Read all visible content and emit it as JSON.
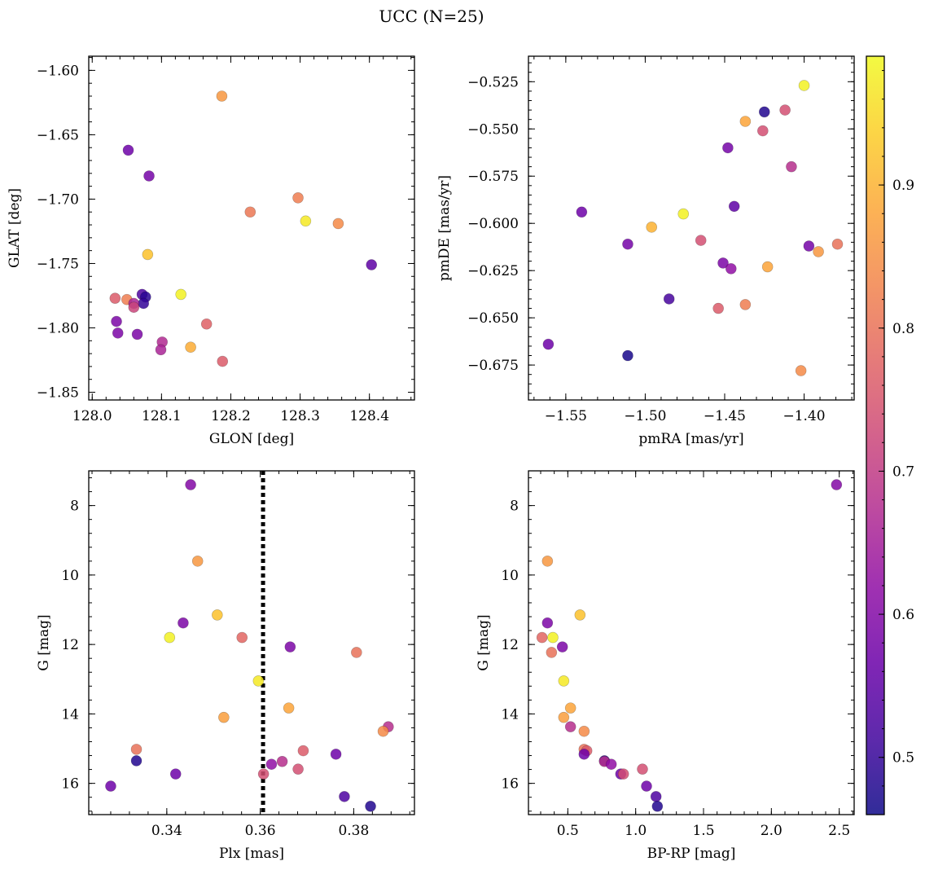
{
  "figure": {
    "title": "UCC (N=25)"
  },
  "colorbar": {
    "cmap": "plasma",
    "range": [
      0.46,
      0.99
    ],
    "ticks": [
      0.5,
      0.6,
      0.7,
      0.8,
      0.9
    ],
    "tick_labels": [
      "0.5",
      "0.6",
      "0.7",
      "0.8",
      "0.9"
    ]
  },
  "chart_data": [
    {
      "id": "glon-glat",
      "type": "scatter",
      "title": "",
      "xlabel": "GLON [deg]",
      "ylabel": "GLAT [deg]",
      "xlim": [
        127.995,
        128.465
      ],
      "ylim": [
        -1.856,
        -1.589
      ],
      "y_inverted": false,
      "xticks": [
        128.0,
        128.1,
        128.2,
        128.3,
        128.4
      ],
      "xtick_labels": [
        "128.0",
        "128.1",
        "128.2",
        "128.3",
        "128.4"
      ],
      "yticks": [
        -1.6,
        -1.65,
        -1.7,
        -1.75,
        -1.8,
        -1.85
      ],
      "ytick_labels": [
        "−1.60",
        "−1.65",
        "−1.70",
        "−1.75",
        "−1.80",
        "−1.85"
      ],
      "points": [
        {
          "x": 128.187,
          "y": -1.62,
          "c": 0.86
        },
        {
          "x": 128.052,
          "y": -1.662,
          "c": 0.57
        },
        {
          "x": 128.082,
          "y": -1.682,
          "c": 0.58
        },
        {
          "x": 128.297,
          "y": -1.699,
          "c": 0.82
        },
        {
          "x": 128.228,
          "y": -1.71,
          "c": 0.81
        },
        {
          "x": 128.308,
          "y": -1.717,
          "c": 0.97
        },
        {
          "x": 128.355,
          "y": -1.719,
          "c": 0.84
        },
        {
          "x": 128.403,
          "y": -1.751,
          "c": 0.55
        },
        {
          "x": 128.08,
          "y": -1.743,
          "c": 0.92
        },
        {
          "x": 128.128,
          "y": -1.774,
          "c": 0.98
        },
        {
          "x": 128.072,
          "y": -1.774,
          "c": 0.53
        },
        {
          "x": 128.077,
          "y": -1.776,
          "c": 0.49
        },
        {
          "x": 128.074,
          "y": -1.781,
          "c": 0.5
        },
        {
          "x": 128.033,
          "y": -1.777,
          "c": 0.76
        },
        {
          "x": 128.05,
          "y": -1.778,
          "c": 0.82
        },
        {
          "x": 128.06,
          "y": -1.781,
          "c": 0.66
        },
        {
          "x": 128.06,
          "y": -1.784,
          "c": 0.72
        },
        {
          "x": 128.035,
          "y": -1.795,
          "c": 0.59
        },
        {
          "x": 128.037,
          "y": -1.804,
          "c": 0.59
        },
        {
          "x": 128.065,
          "y": -1.805,
          "c": 0.59
        },
        {
          "x": 128.165,
          "y": -1.797,
          "c": 0.77
        },
        {
          "x": 128.101,
          "y": -1.811,
          "c": 0.67
        },
        {
          "x": 128.099,
          "y": -1.817,
          "c": 0.66
        },
        {
          "x": 128.142,
          "y": -1.815,
          "c": 0.89
        },
        {
          "x": 128.188,
          "y": -1.826,
          "c": 0.76
        }
      ]
    },
    {
      "id": "pmra-pmde",
      "type": "scatter",
      "title": "",
      "xlabel": "pmRA [mas/yr]",
      "ylabel": "pmDE [mas/yr]",
      "xlim": [
        -1.5735,
        -1.3685
      ],
      "ylim": [
        -0.6935,
        -0.5115
      ],
      "y_inverted": false,
      "xticks": [
        -1.55,
        -1.5,
        -1.45,
        -1.4
      ],
      "xtick_labels": [
        "−1.55",
        "−1.50",
        "−1.45",
        "−1.40"
      ],
      "yticks": [
        -0.525,
        -0.55,
        -0.575,
        -0.6,
        -0.625,
        -0.65,
        -0.675
      ],
      "ytick_labels": [
        "−0.525",
        "−0.550",
        "−0.575",
        "−0.600",
        "−0.625",
        "−0.650",
        "−0.675"
      ],
      "points": [
        {
          "x": -1.4,
          "y": -0.527,
          "c": 0.98
        },
        {
          "x": -1.425,
          "y": -0.541,
          "c": 0.48
        },
        {
          "x": -1.412,
          "y": -0.54,
          "c": 0.74
        },
        {
          "x": -1.437,
          "y": -0.546,
          "c": 0.88
        },
        {
          "x": -1.426,
          "y": -0.551,
          "c": 0.74
        },
        {
          "x": -1.448,
          "y": -0.56,
          "c": 0.58
        },
        {
          "x": -1.408,
          "y": -0.57,
          "c": 0.68
        },
        {
          "x": -1.54,
          "y": -0.594,
          "c": 0.57
        },
        {
          "x": -1.476,
          "y": -0.595,
          "c": 0.98
        },
        {
          "x": -1.444,
          "y": -0.591,
          "c": 0.55
        },
        {
          "x": -1.496,
          "y": -0.602,
          "c": 0.9
        },
        {
          "x": -1.465,
          "y": -0.609,
          "c": 0.74
        },
        {
          "x": -1.511,
          "y": -0.611,
          "c": 0.58
        },
        {
          "x": -1.397,
          "y": -0.612,
          "c": 0.58
        },
        {
          "x": -1.391,
          "y": -0.615,
          "c": 0.86
        },
        {
          "x": -1.379,
          "y": -0.611,
          "c": 0.8
        },
        {
          "x": -1.451,
          "y": -0.621,
          "c": 0.59
        },
        {
          "x": -1.446,
          "y": -0.624,
          "c": 0.62
        },
        {
          "x": -1.423,
          "y": -0.623,
          "c": 0.88
        },
        {
          "x": -1.485,
          "y": -0.64,
          "c": 0.52
        },
        {
          "x": -1.454,
          "y": -0.645,
          "c": 0.76
        },
        {
          "x": -1.437,
          "y": -0.643,
          "c": 0.82
        },
        {
          "x": -1.561,
          "y": -0.664,
          "c": 0.57
        },
        {
          "x": -1.511,
          "y": -0.67,
          "c": 0.47
        },
        {
          "x": -1.402,
          "y": -0.678,
          "c": 0.84
        }
      ]
    },
    {
      "id": "plx-g",
      "type": "scatter",
      "title": "",
      "xlabel": "Plx [mas]",
      "ylabel": "G [mag]",
      "xlim": [
        0.3233,
        0.393
      ],
      "ylim": [
        16.9,
        7.0
      ],
      "y_inverted": true,
      "xticks": [
        0.34,
        0.36,
        0.38
      ],
      "xtick_labels": [
        "0.34",
        "0.36",
        "0.38"
      ],
      "yticks": [
        8,
        10,
        12,
        14,
        16
      ],
      "ytick_labels": [
        "8",
        "10",
        "12",
        "14",
        "16"
      ],
      "vline": {
        "x": 0.3606,
        "style": "dotted"
      },
      "points": [
        {
          "x": 0.3451,
          "y": 7.4,
          "c": 0.6
        },
        {
          "x": 0.3466,
          "y": 9.6,
          "c": 0.86
        },
        {
          "x": 0.3508,
          "y": 11.15,
          "c": 0.92
        },
        {
          "x": 0.3435,
          "y": 11.38,
          "c": 0.59
        },
        {
          "x": 0.3406,
          "y": 11.8,
          "c": 0.98
        },
        {
          "x": 0.3561,
          "y": 11.8,
          "c": 0.78
        },
        {
          "x": 0.3664,
          "y": 12.07,
          "c": 0.59
        },
        {
          "x": 0.3806,
          "y": 12.23,
          "c": 0.8
        },
        {
          "x": 0.3596,
          "y": 13.05,
          "c": 0.97
        },
        {
          "x": 0.3661,
          "y": 13.83,
          "c": 0.88
        },
        {
          "x": 0.3522,
          "y": 14.1,
          "c": 0.87
        },
        {
          "x": 0.3874,
          "y": 14.37,
          "c": 0.68
        },
        {
          "x": 0.3863,
          "y": 14.5,
          "c": 0.84
        },
        {
          "x": 0.3335,
          "y": 15.02,
          "c": 0.8
        },
        {
          "x": 0.3692,
          "y": 15.06,
          "c": 0.76
        },
        {
          "x": 0.3762,
          "y": 15.16,
          "c": 0.57
        },
        {
          "x": 0.3335,
          "y": 15.35,
          "c": 0.48
        },
        {
          "x": 0.3647,
          "y": 15.37,
          "c": 0.68
        },
        {
          "x": 0.3624,
          "y": 15.45,
          "c": 0.62
        },
        {
          "x": 0.3681,
          "y": 15.59,
          "c": 0.74
        },
        {
          "x": 0.3419,
          "y": 15.73,
          "c": 0.57
        },
        {
          "x": 0.3607,
          "y": 15.73,
          "c": 0.74
        },
        {
          "x": 0.328,
          "y": 16.08,
          "c": 0.57
        },
        {
          "x": 0.378,
          "y": 16.38,
          "c": 0.53
        },
        {
          "x": 0.3836,
          "y": 16.66,
          "c": 0.48
        }
      ]
    },
    {
      "id": "bprp-g",
      "type": "scatter",
      "title": "",
      "xlabel": "BP-RP [mag]",
      "ylabel": "G [mag]",
      "xlim": [
        0.21,
        2.61
      ],
      "ylim": [
        16.9,
        7.0
      ],
      "y_inverted": true,
      "xticks": [
        0.5,
        1.0,
        1.5,
        2.0,
        2.5
      ],
      "xtick_labels": [
        "0.5",
        "1.0",
        "1.5",
        "2.0",
        "2.5"
      ],
      "yticks": [
        8,
        10,
        12,
        14,
        16
      ],
      "ytick_labels": [
        "8",
        "10",
        "12",
        "14",
        "16"
      ],
      "points": [
        {
          "x": 2.48,
          "y": 7.4,
          "c": 0.6
        },
        {
          "x": 0.35,
          "y": 9.6,
          "c": 0.86
        },
        {
          "x": 0.59,
          "y": 11.15,
          "c": 0.92
        },
        {
          "x": 0.35,
          "y": 11.38,
          "c": 0.59
        },
        {
          "x": 0.31,
          "y": 11.8,
          "c": 0.78
        },
        {
          "x": 0.39,
          "y": 11.8,
          "c": 0.98
        },
        {
          "x": 0.46,
          "y": 12.07,
          "c": 0.59
        },
        {
          "x": 0.38,
          "y": 12.23,
          "c": 0.8
        },
        {
          "x": 0.47,
          "y": 13.05,
          "c": 0.97
        },
        {
          "x": 0.52,
          "y": 13.83,
          "c": 0.88
        },
        {
          "x": 0.47,
          "y": 14.1,
          "c": 0.87
        },
        {
          "x": 0.52,
          "y": 14.37,
          "c": 0.68
        },
        {
          "x": 0.62,
          "y": 14.5,
          "c": 0.84
        },
        {
          "x": 0.62,
          "y": 15.02,
          "c": 0.8
        },
        {
          "x": 0.64,
          "y": 15.06,
          "c": 0.76
        },
        {
          "x": 0.62,
          "y": 15.16,
          "c": 0.57
        },
        {
          "x": 0.77,
          "y": 15.35,
          "c": 0.48
        },
        {
          "x": 0.77,
          "y": 15.37,
          "c": 0.68
        },
        {
          "x": 0.82,
          "y": 15.45,
          "c": 0.62
        },
        {
          "x": 1.05,
          "y": 15.59,
          "c": 0.74
        },
        {
          "x": 0.89,
          "y": 15.73,
          "c": 0.57
        },
        {
          "x": 0.91,
          "y": 15.73,
          "c": 0.74
        },
        {
          "x": 1.08,
          "y": 16.08,
          "c": 0.57
        },
        {
          "x": 1.15,
          "y": 16.38,
          "c": 0.53
        },
        {
          "x": 1.16,
          "y": 16.66,
          "c": 0.48
        }
      ]
    }
  ]
}
